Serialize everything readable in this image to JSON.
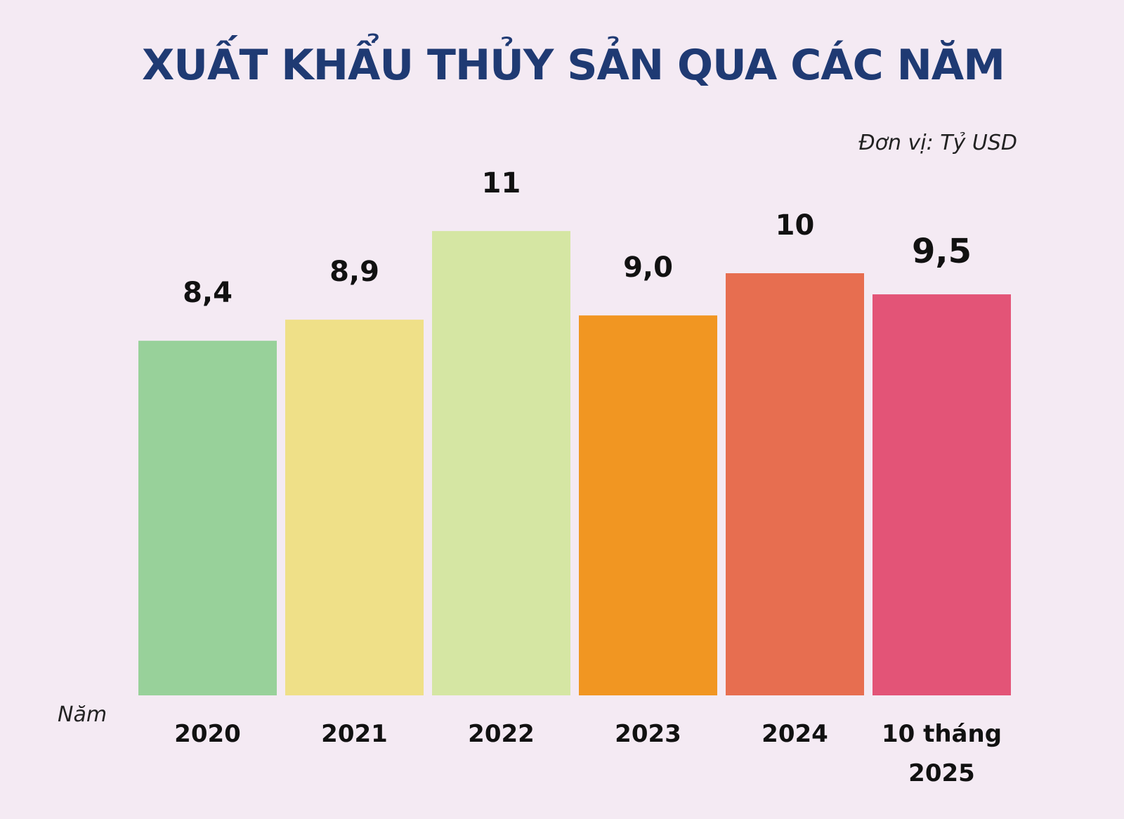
{
  "chart_data": {
    "type": "bar",
    "title": "XUẤT KHẨU THỦY SẢN QUA CÁC NĂM",
    "unit": "Đơn vị: Tỷ USD",
    "xlabel": "Năm",
    "ylabel": "",
    "categories": [
      "2020",
      "2021",
      "2022",
      "2023",
      "2024",
      "10 tháng\n2025"
    ],
    "values": [
      8.4,
      8.9,
      11,
      9.0,
      10,
      9.5
    ],
    "value_labels": [
      "8,4",
      "8,9",
      "11",
      "9,0",
      "10",
      "9,5"
    ],
    "bar_colors": [
      "#98d19a",
      "#efe088",
      "#d5e6a3",
      "#f19622",
      "#e76e50",
      "#e35477"
    ],
    "highlight_index": 5,
    "highlight_label_color": "#c8232c",
    "ylim": [
      0,
      11
    ],
    "grid": false,
    "legend": "none"
  }
}
